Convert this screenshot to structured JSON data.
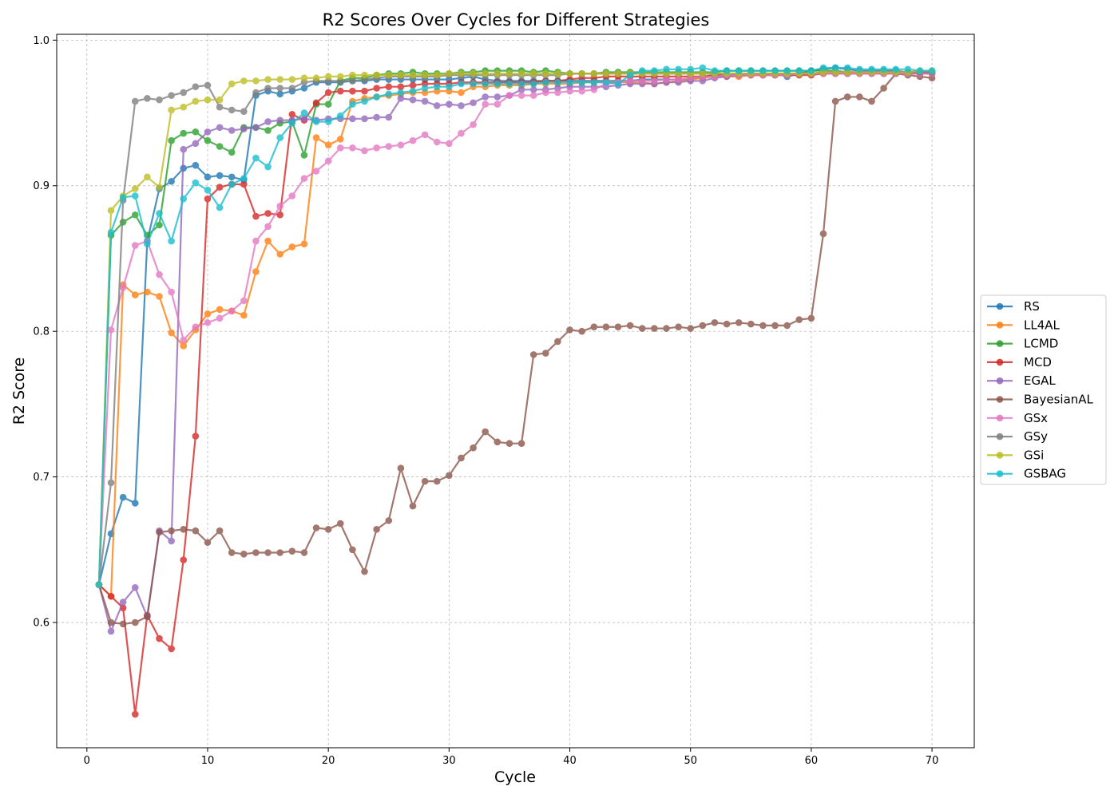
{
  "chart_data": {
    "type": "line",
    "title": "R2 Scores Over Cycles for Different Strategies",
    "xlabel": "Cycle",
    "ylabel": "R2 Score",
    "xlim": [
      -2.5,
      73.5
    ],
    "ylim": [
      0.514,
      1.004
    ],
    "xticks": [
      0,
      10,
      20,
      30,
      40,
      50,
      60,
      70
    ],
    "yticks": [
      0.6,
      0.7,
      0.8,
      0.9,
      1.0
    ],
    "ytick_labels": [
      "0.6",
      "0.7",
      "0.8",
      "0.9",
      "1.0"
    ],
    "grid": true,
    "legend_position": "right",
    "x_range": [
      1,
      70
    ],
    "series": [
      {
        "name": "RS",
        "color": "#1f77b4",
        "values": [
          0.626,
          0.661,
          0.686,
          0.682,
          0.862,
          0.898,
          0.903,
          0.912,
          0.914,
          0.906,
          0.907,
          0.906,
          0.904,
          0.962,
          0.965,
          0.963,
          0.965,
          0.967,
          0.971,
          0.971,
          0.971,
          0.972,
          0.972,
          0.973,
          0.973,
          0.973,
          0.973,
          0.973,
          0.973,
          0.973,
          0.974,
          0.975,
          0.973,
          0.972,
          0.972,
          0.972,
          0.972,
          0.972,
          0.972,
          0.972,
          0.972,
          0.972,
          0.972,
          0.972,
          0.972,
          0.973,
          0.973,
          0.973,
          0.973,
          0.973,
          0.975,
          0.976,
          0.976,
          0.976,
          0.977,
          0.977,
          0.977,
          0.975,
          0.977,
          0.979,
          0.98,
          0.981,
          0.98,
          0.979,
          0.979,
          0.979,
          0.979,
          0.978,
          0.978,
          0.978
        ]
      },
      {
        "name": "LL4AL",
        "color": "#ff7f0e",
        "values": [
          0.626,
          0.618,
          0.832,
          0.825,
          0.827,
          0.824,
          0.799,
          0.79,
          0.801,
          0.812,
          0.815,
          0.814,
          0.811,
          0.841,
          0.862,
          0.853,
          0.858,
          0.86,
          0.933,
          0.928,
          0.932,
          0.958,
          0.96,
          0.961,
          0.962,
          0.963,
          0.964,
          0.964,
          0.965,
          0.965,
          0.964,
          0.968,
          0.968,
          0.969,
          0.969,
          0.969,
          0.97,
          0.97,
          0.97,
          0.97,
          0.971,
          0.971,
          0.971,
          0.971,
          0.971,
          0.971,
          0.97,
          0.971,
          0.972,
          0.973,
          0.974,
          0.975,
          0.975,
          0.975,
          0.976,
          0.976,
          0.976,
          0.976,
          0.977,
          0.977,
          0.978,
          0.978,
          0.978,
          0.978,
          0.978,
          0.978,
          0.978,
          0.978,
          0.978,
          0.978
        ]
      },
      {
        "name": "LCMD",
        "color": "#2ca02c",
        "values": [
          0.626,
          0.866,
          0.875,
          0.88,
          0.866,
          0.873,
          0.931,
          0.936,
          0.937,
          0.931,
          0.927,
          0.923,
          0.94,
          0.94,
          0.938,
          0.943,
          0.944,
          0.921,
          0.956,
          0.956,
          0.972,
          0.974,
          0.974,
          0.976,
          0.977,
          0.977,
          0.978,
          0.977,
          0.977,
          0.977,
          0.978,
          0.978,
          0.979,
          0.979,
          0.979,
          0.979,
          0.978,
          0.979,
          0.978,
          0.977,
          0.977,
          0.977,
          0.978,
          0.978,
          0.978,
          0.978,
          0.978,
          0.978,
          0.978,
          0.978,
          0.978,
          0.978,
          0.979,
          0.979,
          0.979,
          0.979,
          0.979,
          0.979,
          0.979,
          0.979,
          0.979,
          0.979,
          0.978,
          0.978,
          0.978,
          0.978,
          0.978,
          0.978,
          0.978,
          0.978
        ]
      },
      {
        "name": "MCD",
        "color": "#d62728",
        "values": [
          0.626,
          0.618,
          0.61,
          0.537,
          0.605,
          0.589,
          0.582,
          0.643,
          0.728,
          0.891,
          0.899,
          0.901,
          0.901,
          0.879,
          0.881,
          0.88,
          0.949,
          0.945,
          0.957,
          0.964,
          0.965,
          0.965,
          0.965,
          0.967,
          0.968,
          0.968,
          0.969,
          0.97,
          0.97,
          0.97,
          0.971,
          0.971,
          0.971,
          0.971,
          0.971,
          0.971,
          0.971,
          0.972,
          0.972,
          0.973,
          0.974,
          0.974,
          0.975,
          0.975,
          0.975,
          0.975,
          0.975,
          0.975,
          0.975,
          0.975,
          0.975,
          0.976,
          0.976,
          0.976,
          0.976,
          0.976,
          0.976,
          0.976,
          0.976,
          0.976,
          0.977,
          0.977,
          0.977,
          0.977,
          0.977,
          0.977,
          0.977,
          0.977,
          0.977,
          0.977
        ]
      },
      {
        "name": "EGAL",
        "color": "#9467bd",
        "values": [
          0.626,
          0.594,
          0.614,
          0.624,
          0.604,
          0.663,
          0.656,
          0.925,
          0.929,
          0.937,
          0.94,
          0.938,
          0.939,
          0.94,
          0.944,
          0.945,
          0.945,
          0.946,
          0.945,
          0.946,
          0.946,
          0.946,
          0.946,
          0.947,
          0.947,
          0.96,
          0.959,
          0.958,
          0.955,
          0.956,
          0.955,
          0.957,
          0.961,
          0.961,
          0.962,
          0.966,
          0.966,
          0.966,
          0.967,
          0.968,
          0.968,
          0.968,
          0.968,
          0.969,
          0.97,
          0.97,
          0.97,
          0.971,
          0.971,
          0.972,
          0.972,
          0.974,
          0.975,
          0.976,
          0.977,
          0.977,
          0.977,
          0.977,
          0.977,
          0.977,
          0.978,
          0.978,
          0.978,
          0.978,
          0.978,
          0.978,
          0.978,
          0.978,
          0.978,
          0.978
        ]
      },
      {
        "name": "BayesianAL",
        "color": "#8c564b",
        "values": [
          0.626,
          0.6,
          0.599,
          0.6,
          0.604,
          0.662,
          0.663,
          0.664,
          0.663,
          0.655,
          0.663,
          0.648,
          0.647,
          0.648,
          0.648,
          0.648,
          0.649,
          0.648,
          0.665,
          0.664,
          0.668,
          0.65,
          0.635,
          0.664,
          0.67,
          0.706,
          0.68,
          0.697,
          0.697,
          0.701,
          0.713,
          0.72,
          0.731,
          0.724,
          0.723,
          0.723,
          0.784,
          0.785,
          0.793,
          0.801,
          0.8,
          0.803,
          0.803,
          0.803,
          0.804,
          0.802,
          0.802,
          0.802,
          0.803,
          0.802,
          0.804,
          0.806,
          0.805,
          0.806,
          0.805,
          0.804,
          0.804,
          0.804,
          0.808,
          0.809,
          0.867,
          0.958,
          0.961,
          0.961,
          0.958,
          0.967,
          0.977,
          0.976,
          0.975,
          0.974
        ]
      },
      {
        "name": "GSx",
        "color": "#e377c2",
        "values": [
          0.626,
          0.801,
          0.83,
          0.859,
          0.862,
          0.839,
          0.827,
          0.794,
          0.803,
          0.806,
          0.809,
          0.814,
          0.821,
          0.862,
          0.872,
          0.886,
          0.893,
          0.905,
          0.91,
          0.917,
          0.926,
          0.926,
          0.924,
          0.926,
          0.927,
          0.928,
          0.931,
          0.935,
          0.93,
          0.929,
          0.936,
          0.942,
          0.956,
          0.956,
          0.962,
          0.962,
          0.962,
          0.964,
          0.964,
          0.965,
          0.965,
          0.966,
          0.97,
          0.971,
          0.972,
          0.972,
          0.972,
          0.973,
          0.973,
          0.974,
          0.975,
          0.975,
          0.976,
          0.976,
          0.976,
          0.976,
          0.976,
          0.976,
          0.977,
          0.977,
          0.977,
          0.977,
          0.977,
          0.977,
          0.977,
          0.977,
          0.977,
          0.977,
          0.977,
          0.977
        ]
      },
      {
        "name": "GSy",
        "color": "#7f7f7f",
        "values": [
          0.626,
          0.696,
          0.89,
          0.958,
          0.96,
          0.959,
          0.962,
          0.964,
          0.968,
          0.969,
          0.954,
          0.952,
          0.951,
          0.964,
          0.967,
          0.967,
          0.967,
          0.971,
          0.972,
          0.972,
          0.972,
          0.972,
          0.973,
          0.974,
          0.975,
          0.975,
          0.975,
          0.975,
          0.975,
          0.976,
          0.976,
          0.976,
          0.976,
          0.976,
          0.976,
          0.976,
          0.976,
          0.976,
          0.976,
          0.977,
          0.977,
          0.977,
          0.977,
          0.977,
          0.977,
          0.977,
          0.977,
          0.977,
          0.977,
          0.977,
          0.977,
          0.977,
          0.977,
          0.977,
          0.977,
          0.977,
          0.977,
          0.977,
          0.977,
          0.977,
          0.978,
          0.978,
          0.978,
          0.978,
          0.978,
          0.978,
          0.978,
          0.978,
          0.978,
          0.978
        ]
      },
      {
        "name": "GSi",
        "color": "#bcbd22",
        "values": [
          0.626,
          0.883,
          0.893,
          0.898,
          0.906,
          0.899,
          0.952,
          0.954,
          0.958,
          0.959,
          0.959,
          0.97,
          0.972,
          0.972,
          0.973,
          0.973,
          0.973,
          0.974,
          0.974,
          0.975,
          0.975,
          0.976,
          0.976,
          0.976,
          0.976,
          0.976,
          0.976,
          0.976,
          0.976,
          0.977,
          0.977,
          0.977,
          0.977,
          0.977,
          0.977,
          0.977,
          0.977,
          0.977,
          0.977,
          0.977,
          0.977,
          0.977,
          0.977,
          0.977,
          0.977,
          0.977,
          0.977,
          0.977,
          0.977,
          0.977,
          0.977,
          0.977,
          0.977,
          0.977,
          0.977,
          0.977,
          0.977,
          0.977,
          0.977,
          0.977,
          0.978,
          0.978,
          0.978,
          0.978,
          0.978,
          0.978,
          0.978,
          0.978,
          0.979,
          0.979
        ]
      },
      {
        "name": "GSBAG",
        "color": "#17becf",
        "values": [
          0.626,
          0.868,
          0.892,
          0.893,
          0.86,
          0.881,
          0.862,
          0.891,
          0.902,
          0.897,
          0.885,
          0.901,
          0.905,
          0.919,
          0.913,
          0.933,
          0.943,
          0.95,
          0.944,
          0.944,
          0.948,
          0.956,
          0.958,
          0.961,
          0.963,
          0.964,
          0.965,
          0.967,
          0.968,
          0.968,
          0.97,
          0.97,
          0.97,
          0.97,
          0.97,
          0.97,
          0.97,
          0.971,
          0.971,
          0.971,
          0.971,
          0.971,
          0.971,
          0.97,
          0.976,
          0.979,
          0.979,
          0.98,
          0.98,
          0.98,
          0.981,
          0.979,
          0.979,
          0.979,
          0.979,
          0.979,
          0.979,
          0.979,
          0.979,
          0.979,
          0.981,
          0.981,
          0.981,
          0.98,
          0.98,
          0.98,
          0.98,
          0.98,
          0.979,
          0.979
        ]
      }
    ]
  }
}
